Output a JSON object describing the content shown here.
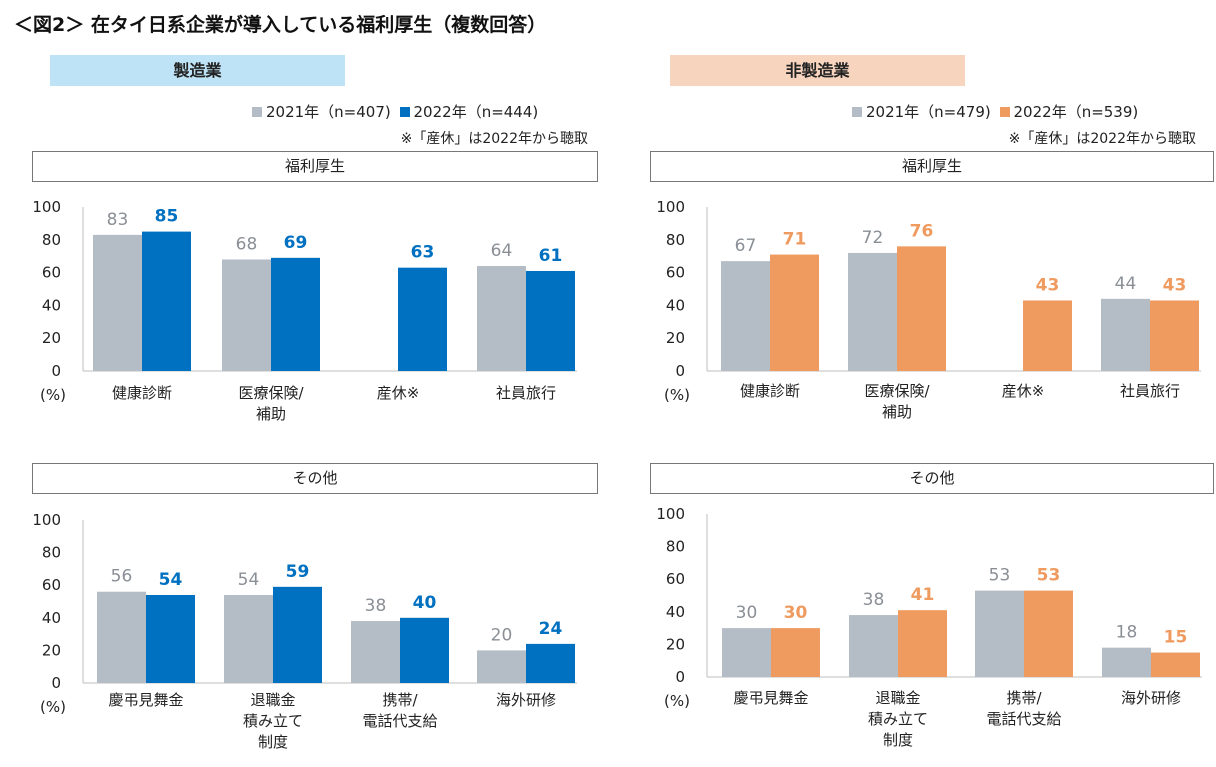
{
  "title": "＜図2＞ 在タイ日系企業が導入している福利厚生（複数回答）",
  "colors": {
    "y2021": "#b4bcc6",
    "mfg2022": "#0070c0",
    "nonmfg2022": "#ef9b60",
    "mfgBand": "#bfe3f6",
    "nonmfgBand": "#f7d4bd"
  },
  "manufacturing": {
    "band": "製造業",
    "legend": {
      "a": "2021年（n=407)",
      "b": "2022年（n=444)"
    },
    "note": "※「産休」は2022年から聴取"
  },
  "nonmanufacturing": {
    "band": "非製造業",
    "legend": {
      "a": "2021年（n=479)",
      "b": "2022年（n=539)"
    },
    "note": "※「産休」は2022年から聴取"
  },
  "section": {
    "benefits": "福利厚生",
    "other": "その他",
    "unit": "(%)"
  },
  "chart_data": [
    {
      "id": "mfg-benefits",
      "type": "bar",
      "title": "福利厚生",
      "group": "製造業",
      "categories": [
        [
          "健康診断"
        ],
        [
          "医療保険/",
          "補助"
        ],
        [
          "産休※"
        ],
        [
          "社員旅行"
        ]
      ],
      "series": [
        {
          "name": "2021年（n=407)",
          "values": [
            83,
            68,
            null,
            64
          ]
        },
        {
          "name": "2022年（n=444)",
          "values": [
            85,
            69,
            63,
            61
          ]
        }
      ],
      "ylim": [
        0,
        100
      ],
      "yticks": [
        0,
        20,
        40,
        60,
        80,
        100
      ],
      "ylabel": "(%)"
    },
    {
      "id": "nonmfg-benefits",
      "type": "bar",
      "title": "福利厚生",
      "group": "非製造業",
      "categories": [
        [
          "健康診断"
        ],
        [
          "医療保険/",
          "補助"
        ],
        [
          "産休※"
        ],
        [
          "社員旅行"
        ]
      ],
      "series": [
        {
          "name": "2021年（n=479)",
          "values": [
            67,
            72,
            null,
            44
          ]
        },
        {
          "name": "2022年（n=539)",
          "values": [
            71,
            76,
            43,
            43
          ]
        }
      ],
      "ylim": [
        0,
        100
      ],
      "yticks": [
        0,
        20,
        40,
        60,
        80,
        100
      ],
      "ylabel": "(%)"
    },
    {
      "id": "mfg-other",
      "type": "bar",
      "title": "その他",
      "group": "製造業",
      "categories": [
        [
          "慶弔見舞金"
        ],
        [
          "退職金",
          "積み立て",
          "制度"
        ],
        [
          "携帯/",
          "電話代支給"
        ],
        [
          "海外研修"
        ]
      ],
      "series": [
        {
          "name": "2021年（n=407)",
          "values": [
            56,
            54,
            38,
            20
          ]
        },
        {
          "name": "2022年（n=444)",
          "values": [
            54,
            59,
            40,
            24
          ]
        }
      ],
      "ylim": [
        0,
        100
      ],
      "yticks": [
        0,
        20,
        40,
        60,
        80,
        100
      ],
      "ylabel": "(%)"
    },
    {
      "id": "nonmfg-other",
      "type": "bar",
      "title": "その他",
      "group": "非製造業",
      "categories": [
        [
          "慶弔見舞金"
        ],
        [
          "退職金",
          "積み立て",
          "制度"
        ],
        [
          "携帯/",
          "電話代支給"
        ],
        [
          "海外研修"
        ]
      ],
      "series": [
        {
          "name": "2021年（n=479)",
          "values": [
            30,
            38,
            53,
            18
          ]
        },
        {
          "name": "2022年（n=539)",
          "values": [
            30,
            41,
            53,
            15
          ]
        }
      ],
      "ylim": [
        0,
        100
      ],
      "yticks": [
        0,
        20,
        40,
        60,
        80,
        100
      ],
      "ylabel": "(%)"
    }
  ]
}
